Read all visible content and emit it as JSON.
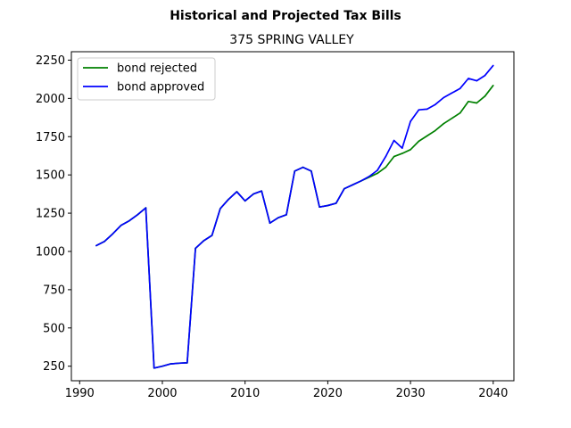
{
  "chart_data": {
    "type": "line",
    "title": "Historical and Projected Tax Bills",
    "subtitle": "375 SPRING VALLEY",
    "xlabel": "",
    "ylabel": "",
    "xlim": [
      1989,
      2042.5
    ],
    "ylim": [
      155,
      2305
    ],
    "xticks": [
      1990,
      2000,
      2010,
      2020,
      2030,
      2040
    ],
    "yticks": [
      250,
      500,
      750,
      1000,
      1250,
      1500,
      1750,
      2000,
      2250
    ],
    "legend_position": "upper-left",
    "grid": false,
    "series": [
      {
        "name": "bond rejected",
        "color": "#008000",
        "x": [
          1992,
          1993,
          1994,
          1995,
          1996,
          1997,
          1998,
          1999,
          2000,
          2001,
          2002,
          2003,
          2004,
          2005,
          2006,
          2007,
          2008,
          2009,
          2010,
          2011,
          2012,
          2013,
          2014,
          2015,
          2016,
          2017,
          2018,
          2019,
          2020,
          2021,
          2022,
          2023,
          2024,
          2025,
          2026,
          2027,
          2028,
          2029,
          2030,
          2031,
          2032,
          2033,
          2034,
          2035,
          2036,
          2037,
          2038,
          2039,
          2040
        ],
        "values": [
          1038,
          1065,
          1115,
          1170,
          1200,
          1240,
          1285,
          238,
          250,
          265,
          270,
          272,
          1020,
          1070,
          1105,
          1280,
          1340,
          1390,
          1330,
          1375,
          1395,
          1185,
          1220,
          1240,
          1525,
          1550,
          1525,
          1290,
          1300,
          1315,
          1410,
          1435,
          1460,
          1485,
          1510,
          1550,
          1620,
          1640,
          1665,
          1720,
          1755,
          1790,
          1835,
          1870,
          1905,
          1980,
          1970,
          2015,
          2085
        ]
      },
      {
        "name": "bond approved",
        "color": "#0000ff",
        "x": [
          1992,
          1993,
          1994,
          1995,
          1996,
          1997,
          1998,
          1999,
          2000,
          2001,
          2002,
          2003,
          2004,
          2005,
          2006,
          2007,
          2008,
          2009,
          2010,
          2011,
          2012,
          2013,
          2014,
          2015,
          2016,
          2017,
          2018,
          2019,
          2020,
          2021,
          2022,
          2023,
          2024,
          2025,
          2026,
          2027,
          2028,
          2029,
          2030,
          2031,
          2032,
          2033,
          2034,
          2035,
          2036,
          2037,
          2038,
          2039,
          2040
        ],
        "values": [
          1038,
          1065,
          1115,
          1170,
          1200,
          1240,
          1285,
          238,
          250,
          265,
          270,
          272,
          1020,
          1070,
          1105,
          1280,
          1340,
          1390,
          1330,
          1375,
          1395,
          1185,
          1220,
          1240,
          1525,
          1550,
          1525,
          1290,
          1300,
          1315,
          1410,
          1435,
          1460,
          1490,
          1530,
          1620,
          1725,
          1675,
          1850,
          1925,
          1930,
          1960,
          2005,
          2035,
          2065,
          2130,
          2115,
          2150,
          2215
        ]
      }
    ]
  }
}
